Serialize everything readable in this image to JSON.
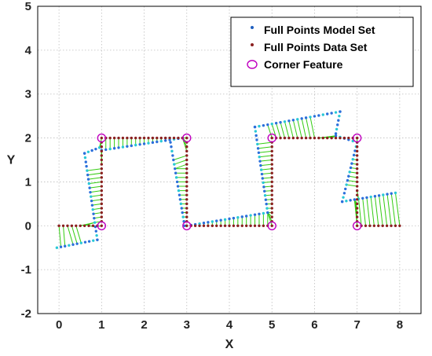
{
  "chart_data": {
    "type": "scatter",
    "xlabel": "X",
    "ylabel": "Y",
    "xlim": [
      -0.5,
      8.5
    ],
    "ylim": [
      -2,
      5
    ],
    "xticks": [
      0,
      1,
      2,
      3,
      4,
      5,
      6,
      7,
      8
    ],
    "yticks": [
      -2,
      -1,
      0,
      1,
      2,
      3,
      4,
      5
    ],
    "grid": true,
    "legend_position": "top-right",
    "legend": [
      {
        "label": "Full Points Model Set",
        "marker": "dot",
        "color": "#1f5fbf"
      },
      {
        "label": "Full Points Data Set",
        "marker": "dot",
        "color": "#8b2020"
      },
      {
        "label": "Corner Feature",
        "marker": "circle",
        "color": "#c000c0"
      }
    ],
    "colors": {
      "model": "#2a6fdb",
      "model_alt": "#29c8d6",
      "data": "#8b2020",
      "correspondence": "#33cc11",
      "corner": "#c000c0"
    },
    "series": [
      {
        "name": "Full Points Data Set",
        "polyline": [
          [
            0,
            0
          ],
          [
            1,
            0
          ],
          [
            1,
            2
          ],
          [
            3,
            2
          ],
          [
            3,
            0
          ],
          [
            5,
            0
          ],
          [
            5,
            2
          ],
          [
            7,
            2
          ],
          [
            7,
            0
          ],
          [
            8,
            0
          ]
        ]
      },
      {
        "name": "Full Points Model Set",
        "segments": [
          [
            [
              -0.05,
              -0.5
            ],
            [
              0.9,
              -0.32
            ]
          ],
          [
            [
              0.9,
              -0.32
            ],
            [
              0.6,
              1.65
            ]
          ],
          [
            [
              0.6,
              1.65
            ],
            [
              0.95,
              1.78
            ]
          ],
          [
            [
              1.0,
              1.72
            ],
            [
              2.9,
              2.0
            ]
          ],
          [
            [
              2.6,
              2.0
            ],
            [
              2.95,
              0.0
            ]
          ],
          [
            [
              3.0,
              0.0
            ],
            [
              4.9,
              0.3
            ]
          ],
          [
            [
              4.9,
              0.3
            ],
            [
              4.6,
              2.25
            ]
          ],
          [
            [
              4.6,
              2.25
            ],
            [
              6.6,
              2.6
            ]
          ],
          [
            [
              6.6,
              2.6
            ],
            [
              6.5,
              2.1
            ]
          ],
          [
            [
              6.5,
              2.05
            ],
            [
              7.0,
              1.9
            ]
          ],
          [
            [
              7.0,
              1.9
            ],
            [
              6.65,
              0.55
            ]
          ],
          [
            [
              6.65,
              0.55
            ],
            [
              7.9,
              0.75
            ]
          ]
        ]
      },
      {
        "name": "Corner Feature",
        "points": [
          [
            1,
            0
          ],
          [
            1,
            2
          ],
          [
            3,
            2
          ],
          [
            3,
            0
          ],
          [
            5,
            0
          ],
          [
            5,
            2
          ],
          [
            7,
            2
          ],
          [
            7,
            0
          ]
        ]
      }
    ]
  }
}
